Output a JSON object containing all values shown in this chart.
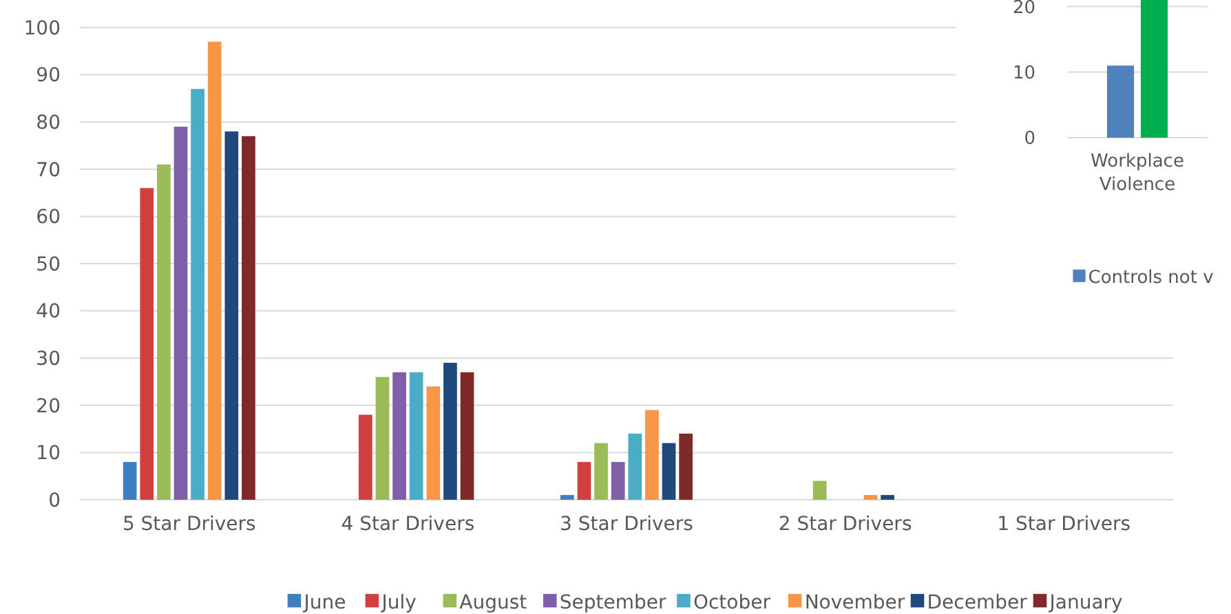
{
  "chart_data": [
    {
      "type": "bar",
      "categories": [
        "5 Star Drivers",
        "4 Star Drivers",
        "3 Star Drivers",
        "2 Star Drivers",
        "1 Star Drivers"
      ],
      "series": [
        {
          "name": "June",
          "color": "#3f7fc0",
          "values": [
            8,
            0,
            1,
            0,
            0
          ]
        },
        {
          "name": "July",
          "color": "#d23f3f",
          "values": [
            66,
            18,
            8,
            0,
            0
          ]
        },
        {
          "name": "August",
          "color": "#9bbb59",
          "values": [
            71,
            26,
            12,
            4,
            0
          ]
        },
        {
          "name": "September",
          "color": "#7f5fa9",
          "values": [
            79,
            27,
            8,
            0,
            0
          ]
        },
        {
          "name": "October",
          "color": "#4bacc6",
          "values": [
            87,
            27,
            14,
            0,
            0
          ]
        },
        {
          "name": "November",
          "color": "#f79646",
          "values": [
            97,
            24,
            19,
            1,
            0
          ]
        },
        {
          "name": "December",
          "color": "#1f497d",
          "values": [
            78,
            29,
            12,
            1,
            0
          ]
        },
        {
          "name": "January",
          "color": "#7f2a2a",
          "values": [
            77,
            27,
            14,
            0,
            0
          ]
        }
      ],
      "ylim": [
        0,
        100
      ],
      "yticks": [
        0,
        10,
        20,
        30,
        40,
        50,
        60,
        70,
        80,
        90,
        100
      ],
      "grid": "y",
      "legend": "bottom"
    },
    {
      "type": "bar",
      "categories": [
        "Workplace Violence"
      ],
      "series": [
        {
          "name": "Controls not v",
          "color": "#4f81bd",
          "values": [
            11
          ]
        },
        {
          "color": "#00b050",
          "values": [
            21
          ]
        }
      ],
      "ylim": [
        0,
        21
      ],
      "yticks": [
        0,
        10,
        20
      ],
      "grid": "y",
      "legend": "bottom"
    }
  ]
}
